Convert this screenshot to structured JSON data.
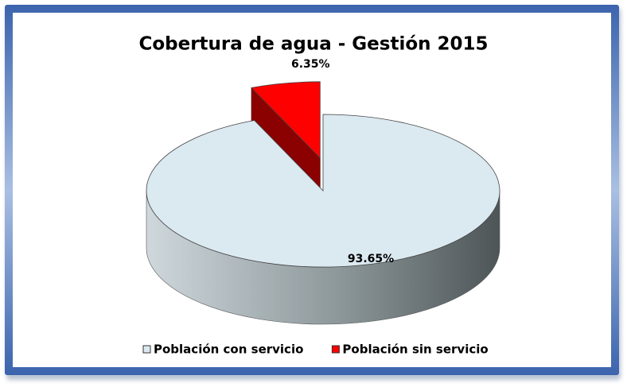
{
  "chart_data": {
    "type": "pie",
    "title": "Cobertura de agua - Gestión 2015",
    "categories": [
      "Población con servicio",
      "Población sin servicio"
    ],
    "values": [
      93.65,
      6.35
    ],
    "value_labels": [
      "93.65%",
      "6.35%"
    ],
    "colors": [
      "#dbe9f1",
      "#ff0000"
    ],
    "exploded": [
      false,
      true
    ],
    "legend": "bottom"
  }
}
